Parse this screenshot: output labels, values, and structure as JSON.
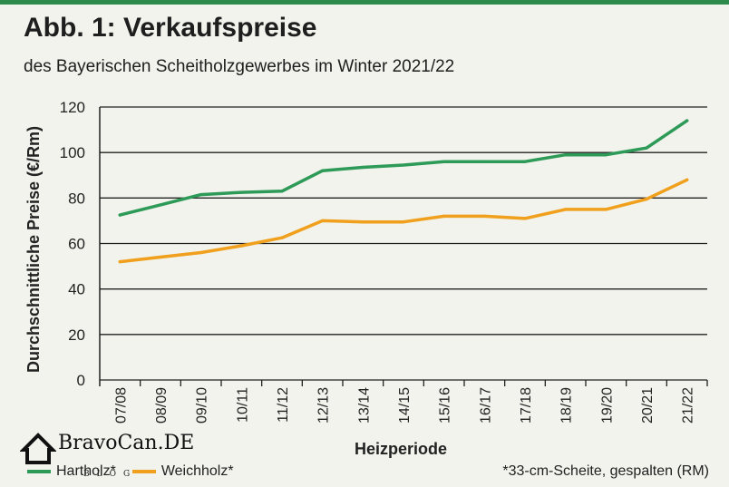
{
  "title": "Abb. 1: Verkaufspreise",
  "subtitle": "des Bayerischen Scheitholzgewerbes im Winter 2021/22",
  "footnote": "*33-cm-Scheite, gespalten (RM)",
  "watermark": {
    "text": "BravoCan.DE",
    "sub": "BLOG"
  },
  "colors": {
    "hartholz": "#2e9a58",
    "weichholz": "#f0a01c",
    "grid": "#222222",
    "top_bar": "#2e8b4e"
  },
  "chart_data": {
    "type": "line",
    "title": "Abb. 1: Verkaufspreise",
    "subtitle": "des Bayerischen Scheitholzgewerbes im Winter 2021/22",
    "xlabel": "Heizperiode",
    "ylabel": "Durchschnittliche Preise (€/Rm)",
    "ylim": [
      0,
      120
    ],
    "yticks": [
      "0",
      "20",
      "40",
      "60",
      "80",
      "100",
      "120"
    ],
    "categories": [
      "07/08",
      "08/09",
      "09/10",
      "10/11",
      "11/12",
      "12/13",
      "13/14",
      "14/15",
      "15/16",
      "16/17",
      "17/18",
      "18/19",
      "19/20",
      "20/21",
      "21/22"
    ],
    "grid": "horizontal",
    "legend_position": "bottom-left",
    "series": [
      {
        "name": "Hartholz*",
        "color": "#2e9a58",
        "values": [
          72.5,
          77,
          81.5,
          82.5,
          83,
          92,
          93.5,
          94.5,
          96,
          96,
          96,
          99,
          99,
          102,
          114
        ]
      },
      {
        "name": "Weichholz*",
        "color": "#f0a01c",
        "values": [
          52,
          54,
          56,
          59,
          62.5,
          70,
          69.5,
          69.5,
          72,
          72,
          71,
          75,
          75,
          79.5,
          88
        ]
      }
    ]
  }
}
